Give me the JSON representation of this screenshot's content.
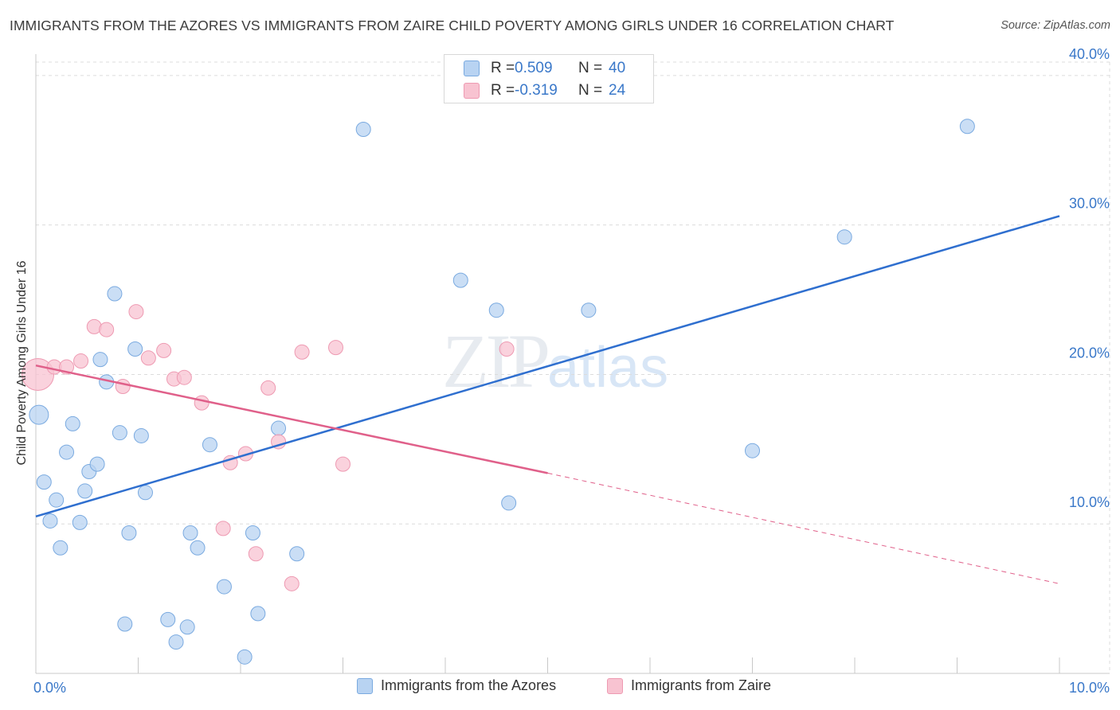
{
  "title": "IMMIGRANTS FROM THE AZORES VS IMMIGRANTS FROM ZAIRE CHILD POVERTY AMONG GIRLS UNDER 16 CORRELATION CHART",
  "source": "Source: ZipAtlas.com",
  "watermark": {
    "zip": "ZIP",
    "atlas": "atlas"
  },
  "stats": {
    "azores": {
      "r_label": "R =",
      "r_value": "0.509",
      "n_label": "N =",
      "n_value": "40"
    },
    "zaire": {
      "r_label": "R =",
      "r_value": "-0.319",
      "n_label": "N =",
      "n_value": "24"
    }
  },
  "legend": {
    "azores": "Immigrants from the Azores",
    "zaire": "Immigrants from Zaire"
  },
  "colors": {
    "azores_fill": "#b8d3f2",
    "azores_stroke": "#7aaae0",
    "azores_line": "#2f6fcf",
    "zaire_fill": "#f8c3d1",
    "zaire_stroke": "#ee9ab2",
    "zaire_line": "#e0608a",
    "axis_text": "#3a78c9",
    "grid": "#dcdcdc"
  },
  "chart_data": {
    "type": "scatter",
    "title": "IMMIGRANTS FROM THE AZORES VS IMMIGRANTS FROM ZAIRE CHILD POVERTY AMONG GIRLS UNDER 16 CORRELATION CHART",
    "xlabel": "",
    "ylabel": "Child Poverty Among Girls Under 16",
    "xlim": [
      0,
      10
    ],
    "ylim": [
      0,
      40.9
    ],
    "x_tick_labels": [
      "0.0%",
      "10.0%"
    ],
    "y_ticks": [
      10,
      20,
      30,
      40
    ],
    "y_tick_labels": [
      "10.0%",
      "20.0%",
      "30.0%",
      "40.0%"
    ],
    "grid": true,
    "legend_position": "bottom-center",
    "series": [
      {
        "name": "Immigrants from the Azores",
        "points": [
          [
            0.03,
            17.3
          ],
          [
            0.08,
            12.8
          ],
          [
            0.14,
            10.2
          ],
          [
            0.2,
            11.6
          ],
          [
            0.24,
            8.4
          ],
          [
            0.3,
            14.8
          ],
          [
            0.36,
            16.7
          ],
          [
            0.43,
            10.1
          ],
          [
            0.48,
            12.2
          ],
          [
            0.52,
            13.5
          ],
          [
            0.6,
            14.0
          ],
          [
            0.63,
            21.0
          ],
          [
            0.69,
            19.5
          ],
          [
            0.77,
            25.4
          ],
          [
            0.82,
            16.1
          ],
          [
            0.87,
            3.3
          ],
          [
            0.91,
            9.4
          ],
          [
            0.97,
            21.7
          ],
          [
            1.03,
            15.9
          ],
          [
            1.07,
            12.1
          ],
          [
            1.29,
            3.6
          ],
          [
            1.37,
            2.1
          ],
          [
            1.48,
            3.1
          ],
          [
            1.51,
            9.4
          ],
          [
            1.58,
            8.4
          ],
          [
            1.7,
            15.3
          ],
          [
            1.84,
            5.8
          ],
          [
            2.04,
            1.1
          ],
          [
            2.12,
            9.4
          ],
          [
            2.17,
            4.0
          ],
          [
            2.37,
            16.4
          ],
          [
            2.55,
            8.0
          ],
          [
            3.2,
            36.4
          ],
          [
            4.15,
            26.3
          ],
          [
            4.5,
            24.3
          ],
          [
            4.62,
            11.4
          ],
          [
            5.4,
            24.3
          ],
          [
            7.0,
            14.9
          ],
          [
            7.9,
            29.2
          ],
          [
            9.1,
            36.6
          ]
        ]
      },
      {
        "name": "Immigrants from Zaire",
        "points": [
          [
            0.02,
            20.0
          ],
          [
            0.18,
            20.5
          ],
          [
            0.3,
            20.5
          ],
          [
            0.44,
            20.9
          ],
          [
            0.57,
            23.2
          ],
          [
            0.69,
            23.0
          ],
          [
            0.85,
            19.2
          ],
          [
            0.98,
            24.2
          ],
          [
            1.1,
            21.1
          ],
          [
            1.25,
            21.6
          ],
          [
            1.35,
            19.7
          ],
          [
            1.45,
            19.8
          ],
          [
            1.62,
            18.1
          ],
          [
            1.83,
            9.7
          ],
          [
            1.9,
            14.1
          ],
          [
            2.05,
            14.7
          ],
          [
            2.15,
            8.0
          ],
          [
            2.27,
            19.1
          ],
          [
            2.37,
            15.5
          ],
          [
            2.5,
            6.0
          ],
          [
            2.6,
            21.5
          ],
          [
            2.93,
            21.8
          ],
          [
            3.0,
            14.0
          ],
          [
            4.6,
            21.7
          ]
        ]
      }
    ],
    "trend_lines": [
      {
        "series": "Immigrants from the Azores",
        "x": [
          0,
          10
        ],
        "y": [
          10.5,
          30.6
        ]
      },
      {
        "series": "Immigrants from Zaire",
        "x": [
          0,
          5
        ],
        "y": [
          20.6,
          13.4
        ],
        "dashed_to": [
          10,
          6.0
        ]
      }
    ]
  }
}
